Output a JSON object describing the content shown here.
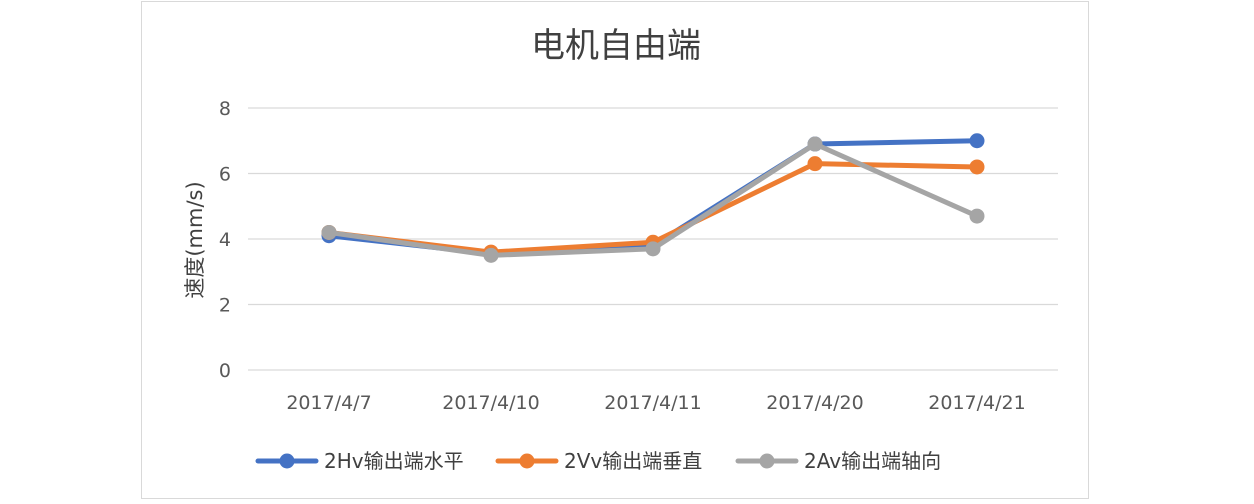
{
  "chart_data": {
    "type": "line",
    "title": "电机自由端",
    "xlabel": "",
    "ylabel": "速度(mm/s)",
    "categories": [
      "2017/4/7",
      "2017/4/10",
      "2017/4/11",
      "2017/4/20",
      "2017/4/21"
    ],
    "ylim": [
      0,
      8
    ],
    "yticks": [
      0,
      2,
      4,
      6,
      8
    ],
    "grid": true,
    "legend_position": "bottom",
    "series": [
      {
        "name": "2Hv输出端水平",
        "color": "#4472c4",
        "values": [
          4.1,
          3.55,
          3.8,
          6.9,
          7.0
        ]
      },
      {
        "name": "2Vv输出端垂直",
        "color": "#ed7d31",
        "values": [
          4.2,
          3.6,
          3.9,
          6.3,
          6.2
        ]
      },
      {
        "name": "2Av输出端轴向",
        "color": "#a5a5a5",
        "values": [
          4.2,
          3.5,
          3.7,
          6.9,
          4.7
        ]
      }
    ]
  }
}
